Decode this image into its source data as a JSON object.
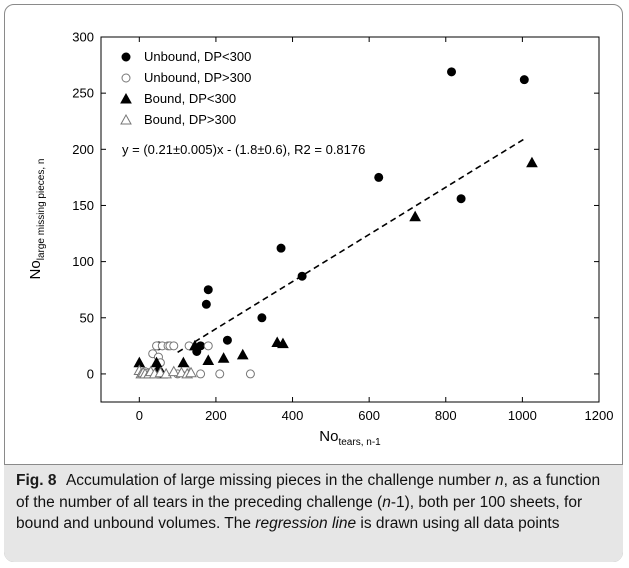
{
  "chart_data": {
    "type": "scatter",
    "xlabel": "No",
    "xlabel_sub": "tears, n-1",
    "ylabel": "No",
    "ylabel_sub": "large missing pieces, n",
    "xlim": [
      -100,
      1200
    ],
    "ylim": [
      -25,
      300
    ],
    "x_ticks": [
      0,
      200,
      400,
      600,
      800,
      1000,
      1200
    ],
    "y_ticks": [
      0,
      50,
      100,
      150,
      200,
      250,
      300
    ],
    "grid": false,
    "legend_position": "top-left",
    "series": [
      {
        "name": "Unbound, DP<300",
        "marker": "circle-filled",
        "points": [
          [
            50,
            25
          ],
          [
            150,
            20
          ],
          [
            160,
            25
          ],
          [
            175,
            62
          ],
          [
            180,
            75
          ],
          [
            230,
            30
          ],
          [
            320,
            50
          ],
          [
            370,
            112
          ],
          [
            425,
            87
          ],
          [
            625,
            175
          ],
          [
            815,
            269
          ],
          [
            840,
            156
          ],
          [
            1005,
            262
          ]
        ]
      },
      {
        "name": "Unbound, DP>300",
        "marker": "circle-open",
        "points": [
          [
            15,
            2
          ],
          [
            20,
            0
          ],
          [
            25,
            1
          ],
          [
            35,
            18
          ],
          [
            45,
            25
          ],
          [
            50,
            15
          ],
          [
            55,
            10
          ],
          [
            60,
            25
          ],
          [
            75,
            25
          ],
          [
            80,
            25
          ],
          [
            90,
            25
          ],
          [
            100,
            0
          ],
          [
            120,
            5
          ],
          [
            130,
            25
          ],
          [
            160,
            0
          ],
          [
            180,
            25
          ],
          [
            210,
            0
          ],
          [
            290,
            0
          ]
        ]
      },
      {
        "name": "Bound, DP<300",
        "marker": "triangle-filled",
        "points": [
          [
            0,
            10
          ],
          [
            45,
            10
          ],
          [
            50,
            5
          ],
          [
            60,
            0
          ],
          [
            115,
            10
          ],
          [
            145,
            25
          ],
          [
            180,
            12
          ],
          [
            220,
            14
          ],
          [
            270,
            17
          ],
          [
            360,
            28
          ],
          [
            375,
            27
          ],
          [
            720,
            140
          ],
          [
            1025,
            188
          ]
        ]
      },
      {
        "name": "Bound, DP>300",
        "marker": "triangle-open",
        "points": [
          [
            0,
            3
          ],
          [
            5,
            0
          ],
          [
            10,
            1
          ],
          [
            15,
            0
          ],
          [
            25,
            0
          ],
          [
            30,
            2
          ],
          [
            40,
            0
          ],
          [
            55,
            1
          ],
          [
            70,
            0
          ],
          [
            90,
            2
          ],
          [
            110,
            1
          ],
          [
            125,
            0
          ],
          [
            135,
            1
          ]
        ]
      }
    ],
    "regression": {
      "label": "y = (0.21±0.005)x - (1.8±0.6), R2 = 0.8176",
      "slope": 0.21,
      "intercept": -1.8,
      "x_range": [
        100,
        1010
      ],
      "style": "dashed"
    }
  },
  "caption": {
    "figure_label": "Fig. 8",
    "text_before_n": "Accumulation of large missing pieces in the challenge number ",
    "n_italic": "n",
    "text_middle": ", as a function of the number of all tears in the preceding challenge (",
    "n_italic_2": "n",
    "text_after": "-1), both per 100 sheets, for bound and unbound volumes. The ",
    "regression_italic": "regression line",
    "text_end": " is drawn using all data points"
  },
  "colors": {
    "frame": "#8a8a8a",
    "caption_bg": "#e6e6e6",
    "marker": "#000000"
  }
}
